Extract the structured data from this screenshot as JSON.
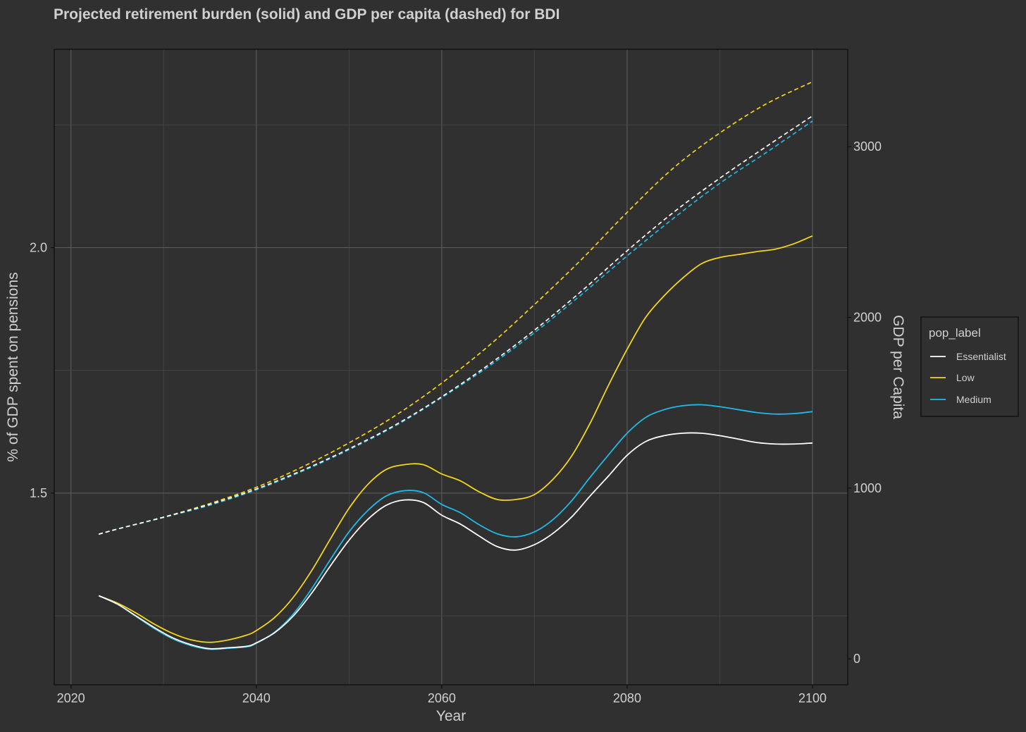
{
  "chart_data": {
    "type": "line",
    "title": "Projected retirement burden (solid) and GDP per capita (dashed) for BDI",
    "xlabel": "Year",
    "ylabel": "% of GDP spent on pensions",
    "y2label": "GDP per Capita",
    "xlim": [
      2018.2,
      2103.8
    ],
    "ylim": [
      1.1095,
      2.404
    ],
    "y2lim": [
      -152,
      3570
    ],
    "x_ticks": [
      "2020",
      "2040",
      "2060",
      "2080",
      "2100"
    ],
    "y_ticks": [
      "1.5",
      "2.0"
    ],
    "y2_ticks": [
      "0",
      "1000",
      "2000",
      "3000"
    ],
    "legend": {
      "title": "pop_label",
      "position": "right",
      "entries": [
        {
          "label": "Essentialist",
          "color": "#ffffff"
        },
        {
          "label": "Low",
          "color": "#f5d519"
        },
        {
          "label": "Medium",
          "color": "#1fbbe8"
        }
      ]
    },
    "series": [
      {
        "name": "Essentialist",
        "color": "#ffffff",
        "pension_pct": [
          [
            2023,
            1.291
          ],
          [
            2025,
            1.274
          ],
          [
            2027,
            1.25
          ],
          [
            2029,
            1.226
          ],
          [
            2031,
            1.205
          ],
          [
            2033,
            1.191
          ],
          [
            2035,
            1.183
          ],
          [
            2037,
            1.185
          ],
          [
            2039,
            1.188
          ],
          [
            2040,
            1.195
          ],
          [
            2042,
            1.216
          ],
          [
            2044,
            1.25
          ],
          [
            2046,
            1.297
          ],
          [
            2048,
            1.352
          ],
          [
            2050,
            1.404
          ],
          [
            2052,
            1.446
          ],
          [
            2054,
            1.475
          ],
          [
            2056,
            1.486
          ],
          [
            2058,
            1.481
          ],
          [
            2060,
            1.455
          ],
          [
            2062,
            1.437
          ],
          [
            2064,
            1.413
          ],
          [
            2066,
            1.391
          ],
          [
            2068,
            1.384
          ],
          [
            2070,
            1.395
          ],
          [
            2072,
            1.418
          ],
          [
            2074,
            1.451
          ],
          [
            2076,
            1.494
          ],
          [
            2078,
            1.535
          ],
          [
            2080,
            1.577
          ],
          [
            2082,
            1.605
          ],
          [
            2084,
            1.617
          ],
          [
            2086,
            1.622
          ],
          [
            2088,
            1.622
          ],
          [
            2090,
            1.617
          ],
          [
            2092,
            1.61
          ],
          [
            2094,
            1.603
          ],
          [
            2096,
            1.6
          ],
          [
            2098,
            1.6
          ],
          [
            2100,
            1.602
          ]
        ],
        "gdp_per_capita": [
          [
            2023,
            730
          ],
          [
            2025,
            760
          ],
          [
            2030,
            830
          ],
          [
            2035,
            905
          ],
          [
            2040,
            995
          ],
          [
            2045,
            1105
          ],
          [
            2050,
            1230
          ],
          [
            2055,
            1370
          ],
          [
            2060,
            1535
          ],
          [
            2065,
            1720
          ],
          [
            2070,
            1925
          ],
          [
            2075,
            2150
          ],
          [
            2080,
            2390
          ],
          [
            2085,
            2615
          ],
          [
            2090,
            2815
          ],
          [
            2095,
            3000
          ],
          [
            2100,
            3180
          ]
        ]
      },
      {
        "name": "Low",
        "color": "#f5d519",
        "pension_pct": [
          [
            2023,
            1.291
          ],
          [
            2025,
            1.276
          ],
          [
            2027,
            1.256
          ],
          [
            2029,
            1.233
          ],
          [
            2031,
            1.214
          ],
          [
            2033,
            1.201
          ],
          [
            2035,
            1.196
          ],
          [
            2037,
            1.201
          ],
          [
            2039,
            1.211
          ],
          [
            2040,
            1.22
          ],
          [
            2042,
            1.247
          ],
          [
            2044,
            1.288
          ],
          [
            2046,
            1.343
          ],
          [
            2048,
            1.407
          ],
          [
            2050,
            1.469
          ],
          [
            2052,
            1.517
          ],
          [
            2054,
            1.548
          ],
          [
            2056,
            1.558
          ],
          [
            2058,
            1.558
          ],
          [
            2060,
            1.539
          ],
          [
            2062,
            1.525
          ],
          [
            2064,
            1.503
          ],
          [
            2066,
            1.487
          ],
          [
            2068,
            1.487
          ],
          [
            2070,
            1.497
          ],
          [
            2072,
            1.528
          ],
          [
            2074,
            1.575
          ],
          [
            2076,
            1.642
          ],
          [
            2078,
            1.72
          ],
          [
            2080,
            1.793
          ],
          [
            2082,
            1.858
          ],
          [
            2084,
            1.902
          ],
          [
            2086,
            1.938
          ],
          [
            2088,
            1.967
          ],
          [
            2090,
            1.98
          ],
          [
            2092,
            1.986
          ],
          [
            2094,
            1.992
          ],
          [
            2096,
            1.997
          ],
          [
            2098,
            2.008
          ],
          [
            2100,
            2.024
          ]
        ],
        "gdp_per_capita": [
          [
            2023,
            730
          ],
          [
            2025,
            760
          ],
          [
            2030,
            830
          ],
          [
            2035,
            910
          ],
          [
            2040,
            1005
          ],
          [
            2045,
            1125
          ],
          [
            2050,
            1265
          ],
          [
            2055,
            1425
          ],
          [
            2060,
            1615
          ],
          [
            2065,
            1830
          ],
          [
            2070,
            2075
          ],
          [
            2075,
            2335
          ],
          [
            2080,
            2615
          ],
          [
            2085,
            2875
          ],
          [
            2090,
            3080
          ],
          [
            2095,
            3250
          ],
          [
            2100,
            3380
          ]
        ]
      },
      {
        "name": "Medium",
        "color": "#1fbbe8",
        "pension_pct": [
          [
            2023,
            1.291
          ],
          [
            2025,
            1.274
          ],
          [
            2027,
            1.249
          ],
          [
            2029,
            1.224
          ],
          [
            2031,
            1.203
          ],
          [
            2033,
            1.189
          ],
          [
            2035,
            1.182
          ],
          [
            2037,
            1.184
          ],
          [
            2039,
            1.187
          ],
          [
            2040,
            1.194
          ],
          [
            2042,
            1.217
          ],
          [
            2044,
            1.254
          ],
          [
            2046,
            1.306
          ],
          [
            2048,
            1.365
          ],
          [
            2050,
            1.421
          ],
          [
            2052,
            1.464
          ],
          [
            2054,
            1.494
          ],
          [
            2056,
            1.505
          ],
          [
            2058,
            1.501
          ],
          [
            2060,
            1.477
          ],
          [
            2062,
            1.46
          ],
          [
            2064,
            1.436
          ],
          [
            2066,
            1.417
          ],
          [
            2068,
            1.411
          ],
          [
            2070,
            1.421
          ],
          [
            2072,
            1.446
          ],
          [
            2074,
            1.484
          ],
          [
            2076,
            1.532
          ],
          [
            2078,
            1.578
          ],
          [
            2080,
            1.622
          ],
          [
            2082,
            1.654
          ],
          [
            2084,
            1.67
          ],
          [
            2086,
            1.678
          ],
          [
            2088,
            1.68
          ],
          [
            2090,
            1.676
          ],
          [
            2092,
            1.67
          ],
          [
            2094,
            1.664
          ],
          [
            2096,
            1.661
          ],
          [
            2098,
            1.662
          ],
          [
            2100,
            1.666
          ]
        ],
        "gdp_per_capita": [
          [
            2023,
            730
          ],
          [
            2025,
            760
          ],
          [
            2030,
            828
          ],
          [
            2035,
            900
          ],
          [
            2040,
            990
          ],
          [
            2045,
            1100
          ],
          [
            2050,
            1225
          ],
          [
            2055,
            1365
          ],
          [
            2060,
            1530
          ],
          [
            2065,
            1710
          ],
          [
            2070,
            1910
          ],
          [
            2075,
            2130
          ],
          [
            2080,
            2360
          ],
          [
            2085,
            2580
          ],
          [
            2090,
            2785
          ],
          [
            2095,
            2965
          ],
          [
            2100,
            3150
          ]
        ]
      }
    ]
  }
}
